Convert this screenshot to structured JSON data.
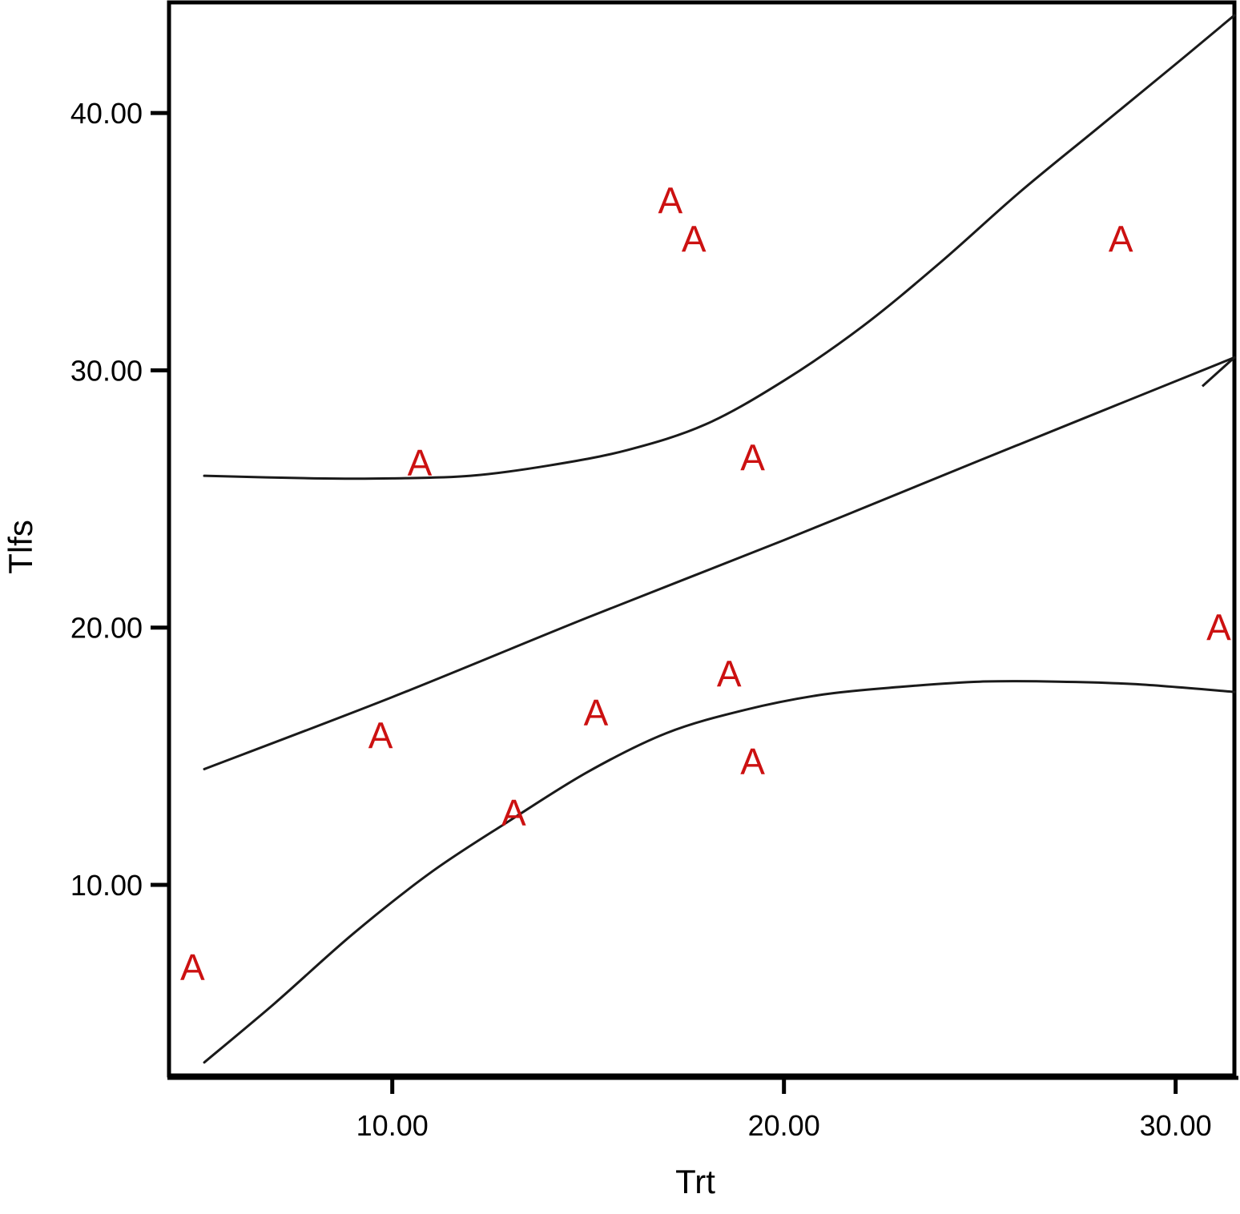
{
  "chart_data": {
    "type": "scatter",
    "title": "",
    "xlabel": "Trt",
    "ylabel": "Tlfs",
    "xlim": [
      4.3,
      31.5
    ],
    "ylim": [
      2.5,
      44.3
    ],
    "grid": false,
    "legend": "none",
    "point_marker": "A",
    "point_color": "#cc1111",
    "x_ticks": [
      {
        "value": 10,
        "label": "10.00"
      },
      {
        "value": 20,
        "label": "20.00"
      },
      {
        "value": 30,
        "label": "30.00"
      }
    ],
    "y_ticks": [
      {
        "value": 10,
        "label": "10.00"
      },
      {
        "value": 20,
        "label": "20.00"
      },
      {
        "value": 30,
        "label": "30.00"
      },
      {
        "value": 40,
        "label": "40.00"
      }
    ],
    "points": [
      {
        "x": 4.9,
        "y": 6.8
      },
      {
        "x": 9.7,
        "y": 15.8
      },
      {
        "x": 10.7,
        "y": 26.4
      },
      {
        "x": 13.1,
        "y": 12.8
      },
      {
        "x": 15.2,
        "y": 16.7
      },
      {
        "x": 17.1,
        "y": 36.6
      },
      {
        "x": 17.7,
        "y": 35.1
      },
      {
        "x": 18.6,
        "y": 18.2
      },
      {
        "x": 19.2,
        "y": 14.8
      },
      {
        "x": 19.2,
        "y": 26.6
      },
      {
        "x": 28.6,
        "y": 35.1
      },
      {
        "x": 31.1,
        "y": 20.0
      }
    ],
    "series": [
      {
        "line": "fit",
        "x": [
          5.2,
          10,
          15,
          20,
          25,
          31.5
        ],
        "y": [
          14.5,
          17.3,
          20.4,
          23.4,
          26.5,
          30.5
        ]
      },
      {
        "line": "upper",
        "x": [
          5.2,
          8.0,
          10.0,
          12.0,
          14.0,
          16.0,
          18.0,
          20.0,
          22.0,
          24.0,
          26.0,
          28.0,
          30.0,
          31.5
        ],
        "y": [
          25.9,
          25.8,
          25.8,
          25.9,
          26.3,
          26.9,
          27.9,
          29.6,
          31.7,
          34.2,
          36.9,
          39.4,
          41.9,
          43.8
        ]
      },
      {
        "line": "lower",
        "x": [
          5.2,
          7.0,
          9.0,
          11.0,
          13.0,
          15.0,
          17.0,
          19.0,
          21.0,
          23.0,
          25.0,
          27.0,
          29.0,
          31.5
        ],
        "y": [
          3.1,
          5.4,
          8.1,
          10.5,
          12.5,
          14.4,
          15.9,
          16.8,
          17.4,
          17.7,
          17.9,
          17.9,
          17.8,
          17.5
        ]
      }
    ]
  }
}
